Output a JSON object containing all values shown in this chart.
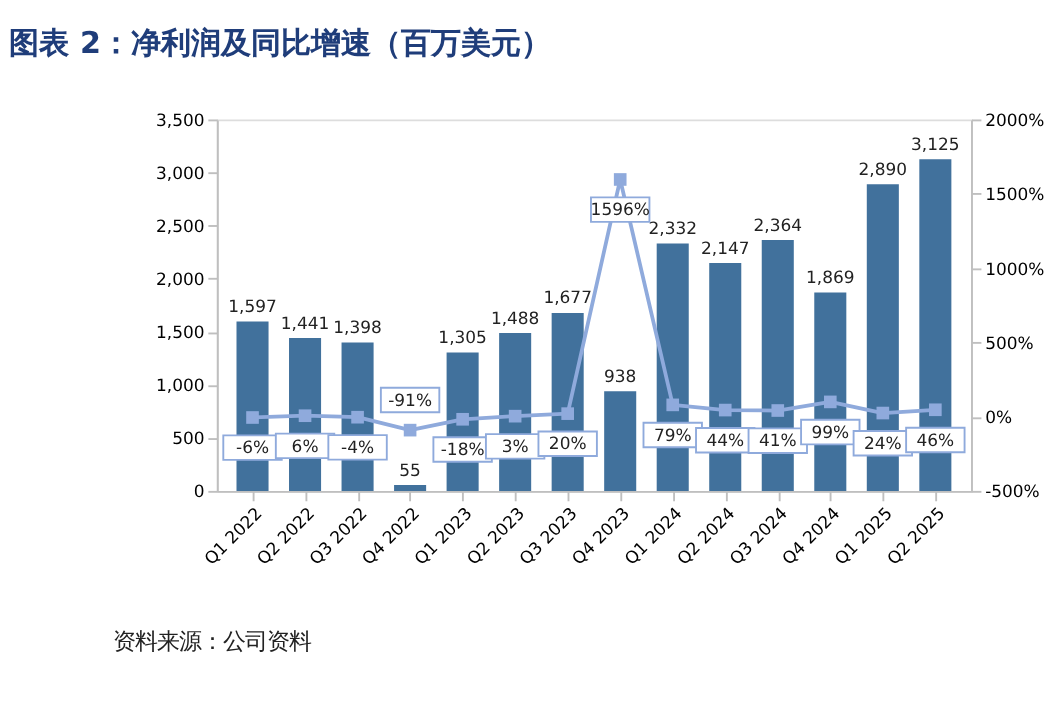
{
  "chart_data": {
    "type": "bar",
    "title": "图表 2：净利润及同比增速（百万美元）",
    "categories": [
      "Q1 2022",
      "Q2 2022",
      "Q3 2022",
      "Q4 2022",
      "Q1 2023",
      "Q2 2023",
      "Q3 2023",
      "Q4 2023",
      "Q1 2024",
      "Q2 2024",
      "Q3 2024",
      "Q4 2024",
      "Q1 2025",
      "Q2 2025"
    ],
    "series": [
      {
        "color": "#41719c",
        "values": [
          1597,
          1441,
          1398,
          55,
          1305,
          1488,
          1677,
          938,
          2332,
          2147,
          2364,
          1869,
          2890,
          3125
        ],
        "value_labels": [
          "1,597",
          "1,441",
          "1,398",
          "55",
          "1,305",
          "1,488",
          "1,677",
          "938",
          "2,332",
          "2,147",
          "2,364",
          "1,869",
          "2,890",
          "3,125"
        ]
      },
      {
        "type": "line",
        "axis": "y2",
        "color": "#8faadc",
        "marker": "square",
        "values": [
          -6,
          6,
          -4,
          -91,
          -18,
          3,
          20,
          1596,
          79,
          44,
          41,
          99,
          24,
          46
        ],
        "value_labels": [
          "-6%",
          "6%",
          "-4%",
          "-91%",
          "-18%",
          "3%",
          "20%",
          "1596%",
          "79%",
          "44%",
          "41%",
          "99%",
          "24%",
          "46%"
        ]
      }
    ],
    "ylim": [
      0,
      3500
    ],
    "yticks": [
      {
        "value": 0,
        "label": "0"
      },
      {
        "value": 500,
        "label": "500"
      },
      {
        "value": 1000,
        "label": "1,000"
      },
      {
        "value": 1500,
        "label": "1,500"
      },
      {
        "value": 2000,
        "label": "2,000"
      },
      {
        "value": 2500,
        "label": "2,500"
      },
      {
        "value": 3000,
        "label": "3,000"
      },
      {
        "value": 3500,
        "label": "3,500"
      }
    ],
    "y2lim": [
      -500,
      2000
    ],
    "y2ticks": [
      {
        "value": -500,
        "label": "-500%"
      },
      {
        "value": 0,
        "label": "0%"
      },
      {
        "value": 500,
        "label": "500%"
      },
      {
        "value": 1000,
        "label": "1000%"
      },
      {
        "value": 1500,
        "label": "1500%"
      },
      {
        "value": 2000,
        "label": "2000%"
      }
    ],
    "grid": false,
    "annotations": [
      "资料来源：公司资料"
    ]
  }
}
